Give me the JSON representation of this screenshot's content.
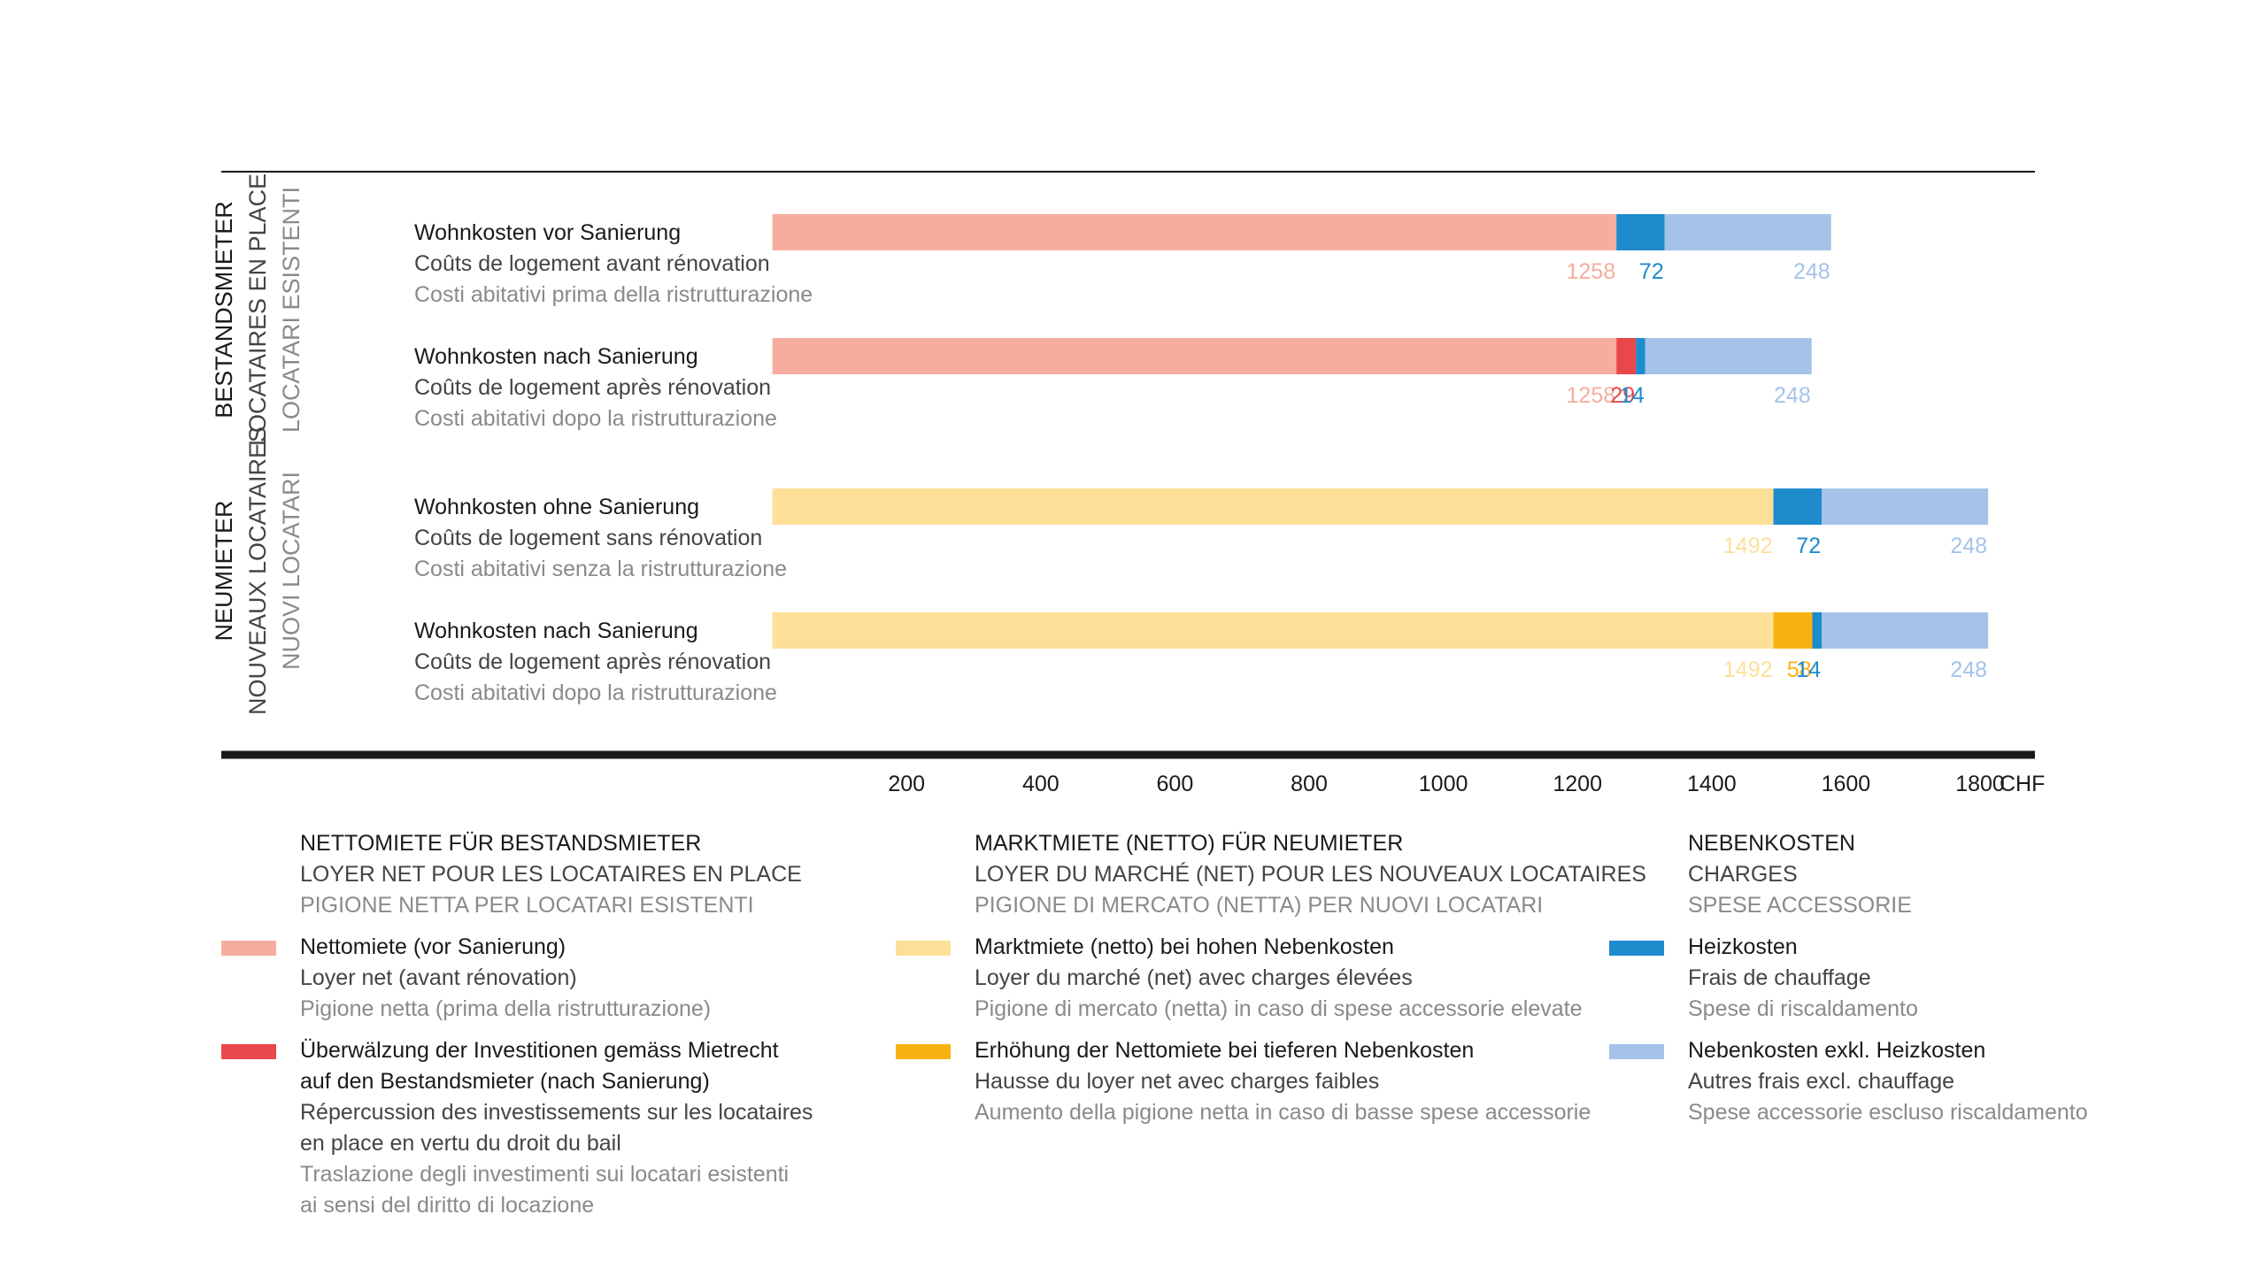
{
  "colors": {
    "net_rent": "#f6ad9f",
    "passthrough": "#e8484a",
    "market_rent": "#fddf98",
    "rent_increase": "#f9b311",
    "heating": "#1e8bcd",
    "other_charges": "#a5c3e9",
    "text_dark": "#1a1a1a",
    "text_mid": "#444444",
    "text_light": "#8a8a8a"
  },
  "chart_data": {
    "type": "bar",
    "orientation": "horizontal",
    "stacked": true,
    "unit": "CHF",
    "xlim": [
      0,
      1900
    ],
    "xticks": [
      200,
      400,
      600,
      800,
      1000,
      1200,
      1400,
      1600,
      1800
    ],
    "groups": [
      {
        "label_lines": [
          "BESTANDSMIETER",
          "LOCATAIRES EN PLACE",
          "LOCATARI ESISTENTI"
        ],
        "rows": [
          {
            "label_lines": [
              "Wohnkosten vor Sanierung",
              "Coûts de logement avant rénovation",
              "Costi abitativi prima della ristrutturazione"
            ],
            "segments": [
              {
                "series": "net_rent",
                "value": 1258
              },
              {
                "series": "heating",
                "value": 72
              },
              {
                "series": "other_charges",
                "value": 248
              }
            ]
          },
          {
            "label_lines": [
              "Wohnkosten nach Sanierung",
              "Coûts de logement après rénovation",
              "Costi abitativi dopo la ristrutturazione"
            ],
            "segments": [
              {
                "series": "net_rent",
                "value": 1258
              },
              {
                "series": "passthrough",
                "value": 29
              },
              {
                "series": "heating",
                "value": 14
              },
              {
                "series": "other_charges",
                "value": 248
              }
            ]
          }
        ]
      },
      {
        "label_lines": [
          "NEUMIETER",
          "NOUVEAUX LOCATAIRES",
          "NUOVI LOCATARI"
        ],
        "rows": [
          {
            "label_lines": [
              "Wohnkosten ohne Sanierung",
              "Coûts de logement sans rénovation",
              "Costi abitativi senza la ristrutturazione"
            ],
            "segments": [
              {
                "series": "market_rent",
                "value": 1492
              },
              {
                "series": "heating",
                "value": 72
              },
              {
                "series": "other_charges",
                "value": 248
              }
            ]
          },
          {
            "label_lines": [
              "Wohnkosten nach Sanierung",
              "Coûts de logement après rénovation",
              "Costi abitativi dopo la ristrutturazione"
            ],
            "segments": [
              {
                "series": "market_rent",
                "value": 1492
              },
              {
                "series": "rent_increase",
                "value": 58
              },
              {
                "series": "heating",
                "value": 14
              },
              {
                "series": "other_charges",
                "value": 248
              }
            ]
          }
        ]
      }
    ]
  },
  "legend": {
    "columns": [
      {
        "heading": [
          "NETTOMIETE FÜR BESTANDSMIETER",
          "LOYER NET POUR LES LOCATAIRES EN PLACE",
          "PIGIONE NETTA PER LOCATARI ESISTENTI"
        ],
        "items": [
          {
            "series": "net_rent",
            "de": [
              "Nettomiete (vor Sanierung)"
            ],
            "fr": [
              "Loyer net (avant rénovation)"
            ],
            "it": [
              "Pigione netta (prima della ristrutturazione)"
            ]
          },
          {
            "series": "passthrough",
            "de": [
              "Überwälzung der Investitionen gemäss Mietrecht",
              "auf den Bestandsmieter (nach Sanierung)"
            ],
            "fr": [
              "Répercussion des investissements sur les locataires",
              "en place en vertu du droit du bail"
            ],
            "it": [
              "Traslazione degli investimenti sui locatari esistenti",
              "ai sensi del diritto di locazione"
            ]
          }
        ]
      },
      {
        "heading": [
          "MARKTMIETE (NETTO) FÜR NEUMIETER",
          "LOYER DU MARCHÉ (NET) POUR LES NOUVEAUX LOCATAIRES",
          "PIGIONE DI MERCATO (NETTA) PER NUOVI LOCATARI"
        ],
        "items": [
          {
            "series": "market_rent",
            "de": [
              "Marktmiete (netto) bei hohen Nebenkosten"
            ],
            "fr": [
              "Loyer du marché (net) avec charges élevées"
            ],
            "it": [
              "Pigione di mercato (netta) in caso di spese accessorie elevate"
            ]
          },
          {
            "series": "rent_increase",
            "de": [
              "Erhöhung der Nettomiete bei tieferen Nebenkosten"
            ],
            "fr": [
              "Hausse du loyer net avec charges faibles"
            ],
            "it": [
              "Aumento della pigione netta in caso di basse spese accessorie"
            ]
          }
        ]
      },
      {
        "heading": [
          "NEBENKOSTEN",
          "CHARGES",
          "SPESE ACCESSORIE"
        ],
        "items": [
          {
            "series": "heating",
            "de": [
              "Heizkosten"
            ],
            "fr": [
              "Frais de chauffage"
            ],
            "it": [
              "Spese di riscaldamento"
            ]
          },
          {
            "series": "other_charges",
            "de": [
              "Nebenkosten exkl. Heizkosten"
            ],
            "fr": [
              "Autres frais excl. chauffage"
            ],
            "it": [
              "Spese accessorie escluso riscaldamento"
            ]
          }
        ]
      }
    ]
  }
}
